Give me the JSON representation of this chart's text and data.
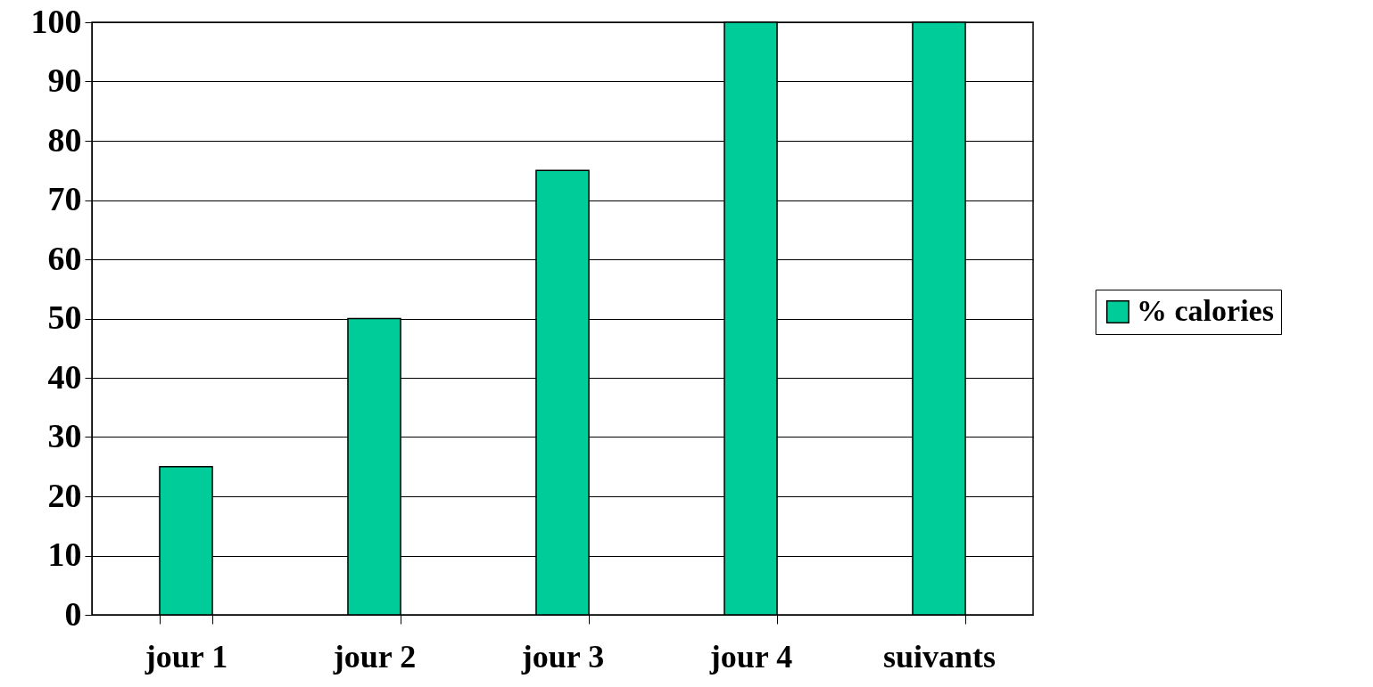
{
  "chart_data": {
    "type": "bar",
    "categories": [
      "jour 1",
      "jour 2",
      "jour 3",
      "jour 4",
      "suivants"
    ],
    "series": [
      {
        "name": "% calories",
        "color": "#00cc99",
        "values": [
          25,
          50,
          75,
          100,
          100
        ]
      }
    ],
    "ylim": [
      0,
      100
    ],
    "yticks": [
      0,
      10,
      20,
      30,
      40,
      50,
      60,
      70,
      80,
      90,
      100
    ],
    "grid": "y",
    "legend": "right"
  }
}
